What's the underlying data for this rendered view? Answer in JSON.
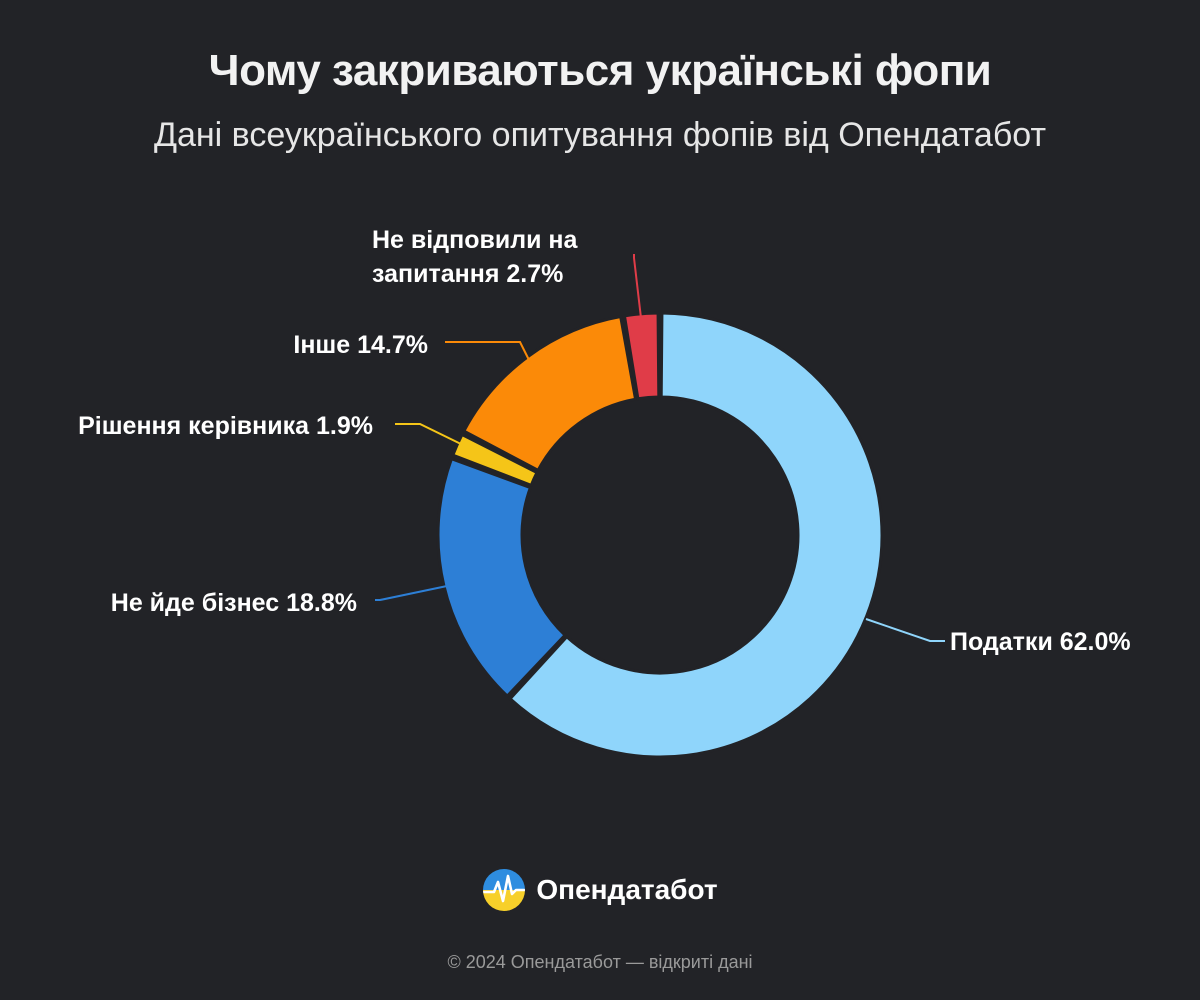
{
  "title": "Чому закриваються українські фопи",
  "subtitle": "Дані всеукраїнського опитування фопів від Опендатабот",
  "chart_data": {
    "type": "pie",
    "style": "donut",
    "start": "top",
    "direction": "clockwise",
    "categories": [
      "Податки",
      "Не йде бізнес",
      "Рішення керівника",
      "Інше",
      "Не відповили на запитання"
    ],
    "values": [
      62.0,
      18.8,
      1.9,
      14.7,
      2.7
    ],
    "colors": [
      "#8fd5fb",
      "#2d7fd6",
      "#f5c518",
      "#fb8a08",
      "#e03c48"
    ],
    "labels": [
      {
        "lines": [
          "Податки 62.0%"
        ]
      },
      {
        "lines": [
          "Не йде бізнес 18.8%"
        ]
      },
      {
        "lines": [
          "Рішення керівника 1.9%"
        ]
      },
      {
        "lines": [
          "Інше 14.7%"
        ]
      },
      {
        "lines": [
          "Не відповили на",
          "запитання 2.7%"
        ]
      }
    ]
  },
  "brand": {
    "name": "Опендатабот",
    "icon": "opendatabot-logo-icon"
  },
  "footer": "© 2024 Опендатабот — відкриті дані"
}
